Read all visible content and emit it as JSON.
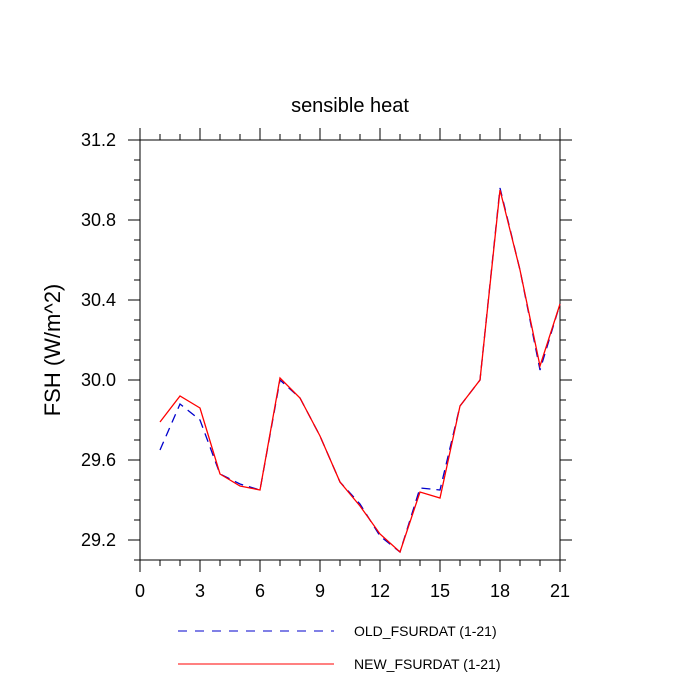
{
  "chart_data": {
    "type": "line",
    "title": "sensible heat",
    "ylabel": "FSH  (W/m^2)",
    "xlabel": "",
    "xlim": [
      0,
      21
    ],
    "ylim": [
      29.1,
      31.2
    ],
    "x_ticks": [
      0,
      3,
      6,
      9,
      12,
      15,
      18,
      21
    ],
    "y_ticks": [
      29.2,
      29.6,
      30.0,
      30.4,
      30.8,
      31.2
    ],
    "y_tick_labels": [
      "29.2",
      "29.6",
      "30.0",
      "30.4",
      "30.8",
      "31.2"
    ],
    "x": [
      1,
      2,
      3,
      4,
      5,
      6,
      7,
      8,
      9,
      10,
      11,
      12,
      13,
      14,
      15,
      16,
      17,
      18,
      19,
      20,
      21
    ],
    "series": [
      {
        "name": "OLD_FSURDAT (1-21)",
        "color": "#0000cc",
        "dash": "dashed",
        "values": [
          29.65,
          29.88,
          29.8,
          29.53,
          29.48,
          29.45,
          30.0,
          29.91,
          29.72,
          29.49,
          29.38,
          29.22,
          29.14,
          29.46,
          29.45,
          29.87,
          30.0,
          30.96,
          30.55,
          30.05,
          30.38
        ]
      },
      {
        "name": "NEW_FSURDAT (1-21)",
        "color": "#ff0000",
        "dash": "solid",
        "values": [
          29.79,
          29.92,
          29.86,
          29.53,
          29.47,
          29.45,
          30.01,
          29.91,
          29.72,
          29.49,
          29.37,
          29.23,
          29.14,
          29.44,
          29.41,
          29.87,
          30.0,
          30.95,
          30.55,
          30.07,
          30.38
        ]
      }
    ],
    "legend_position": "bottom",
    "grid": false
  }
}
